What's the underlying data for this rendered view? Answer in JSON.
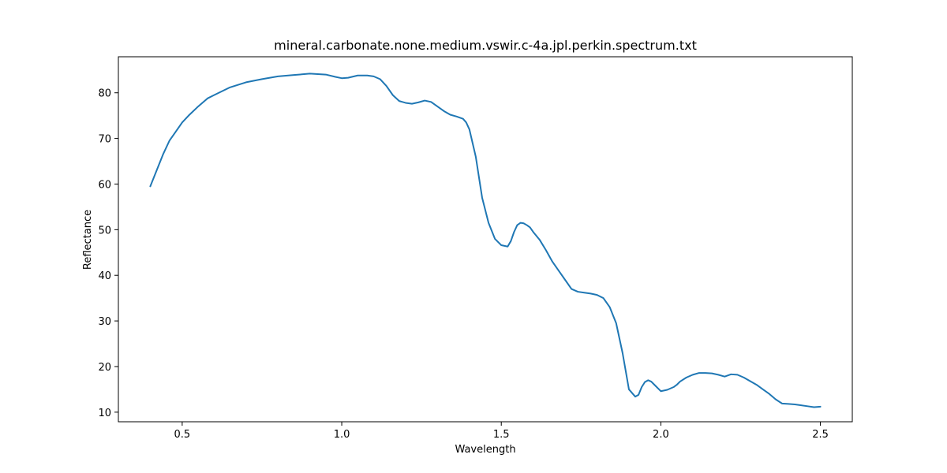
{
  "chart_data": {
    "type": "line",
    "title": "mineral.carbonate.none.medium.vswir.c-4a.jpl.perkin.spectrum.txt",
    "xlabel": "Wavelength",
    "ylabel": "Reflectance",
    "xlim": [
      0.3,
      2.6
    ],
    "ylim": [
      7.9,
      87.9
    ],
    "xticks": [
      0.5,
      1.0,
      1.5,
      2.0,
      2.5
    ],
    "xtick_labels": [
      "0.5",
      "1.0",
      "1.5",
      "2.0",
      "2.5"
    ],
    "yticks": [
      10,
      20,
      30,
      40,
      50,
      60,
      70,
      80
    ],
    "ytick_labels": [
      "10",
      "20",
      "30",
      "40",
      "50",
      "60",
      "70",
      "80"
    ],
    "grid": false,
    "series": [
      {
        "color": "#1f77b4",
        "x": [
          0.4,
          0.42,
          0.44,
          0.46,
          0.48,
          0.5,
          0.52,
          0.55,
          0.58,
          0.6,
          0.65,
          0.7,
          0.75,
          0.8,
          0.85,
          0.9,
          0.95,
          0.98,
          1.0,
          1.02,
          1.05,
          1.08,
          1.1,
          1.12,
          1.14,
          1.16,
          1.18,
          1.2,
          1.22,
          1.24,
          1.26,
          1.28,
          1.3,
          1.32,
          1.34,
          1.36,
          1.38,
          1.39,
          1.4,
          1.42,
          1.44,
          1.46,
          1.48,
          1.5,
          1.52,
          1.53,
          1.54,
          1.55,
          1.56,
          1.57,
          1.58,
          1.59,
          1.6,
          1.62,
          1.64,
          1.66,
          1.68,
          1.7,
          1.72,
          1.74,
          1.76,
          1.78,
          1.8,
          1.82,
          1.84,
          1.86,
          1.88,
          1.9,
          1.92,
          1.93,
          1.94,
          1.95,
          1.96,
          1.97,
          1.98,
          2.0,
          2.02,
          2.04,
          2.05,
          2.06,
          2.08,
          2.1,
          2.12,
          2.14,
          2.16,
          2.18,
          2.2,
          2.22,
          2.24,
          2.26,
          2.28,
          2.3,
          2.32,
          2.34,
          2.36,
          2.38,
          2.4,
          2.42,
          2.44,
          2.46,
          2.48,
          2.5
        ],
        "y": [
          59.5,
          63.0,
          66.5,
          69.5,
          71.5,
          73.5,
          75.0,
          77.0,
          78.8,
          79.5,
          81.2,
          82.3,
          83.0,
          83.6,
          83.9,
          84.2,
          84.0,
          83.5,
          83.2,
          83.3,
          83.8,
          83.8,
          83.6,
          83.0,
          81.5,
          79.5,
          78.2,
          77.8,
          77.6,
          77.9,
          78.3,
          78.0,
          77.0,
          76.0,
          75.2,
          74.8,
          74.3,
          73.5,
          72.0,
          66.0,
          57.0,
          51.5,
          48.0,
          46.6,
          46.3,
          47.5,
          49.5,
          51.0,
          51.5,
          51.4,
          51.0,
          50.5,
          49.5,
          47.8,
          45.5,
          43.0,
          41.0,
          39.0,
          37.0,
          36.4,
          36.2,
          36.0,
          35.7,
          35.0,
          33.0,
          29.5,
          23.0,
          15.0,
          13.4,
          13.8,
          15.5,
          16.6,
          17.0,
          16.7,
          16.0,
          14.6,
          14.9,
          15.5,
          16.0,
          16.7,
          17.6,
          18.2,
          18.6,
          18.6,
          18.5,
          18.2,
          17.8,
          18.3,
          18.2,
          17.6,
          16.8,
          16.0,
          15.0,
          14.0,
          12.8,
          11.9,
          11.8,
          11.7,
          11.5,
          11.3,
          11.1,
          11.2
        ]
      }
    ]
  }
}
